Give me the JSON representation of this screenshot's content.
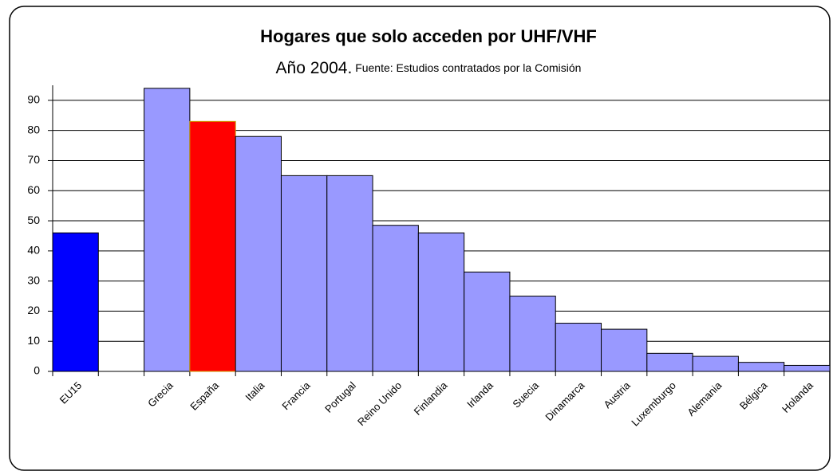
{
  "chart_data": {
    "type": "bar",
    "title": "Hogares que solo acceden por UHF/VHF",
    "subtitle": "Año 2004.",
    "source": "Fuente: Estudios contratados por la Comisión",
    "categories": [
      "EU15",
      null,
      "Grecia",
      "España",
      "Italia",
      "Francia",
      "Portugal",
      "Reino Unido",
      "Finlandia",
      "Irlanda",
      "Suecia",
      "Dinamarca",
      "Austria",
      "Luxemburgo",
      "Alemania",
      "Bélgica",
      "Holanda"
    ],
    "values": [
      46,
      null,
      94,
      83,
      78,
      65,
      65,
      48.5,
      46,
      33,
      25,
      16,
      14,
      6,
      5,
      3,
      2
    ],
    "colors": [
      "#0000ff",
      null,
      "#9999ff",
      "#ff0000",
      "#9999ff",
      "#9999ff",
      "#9999ff",
      "#9999ff",
      "#9999ff",
      "#9999ff",
      "#9999ff",
      "#9999ff",
      "#9999ff",
      "#9999ff",
      "#9999ff",
      "#9999ff",
      "#9999ff"
    ],
    "ylim": [
      0,
      95
    ],
    "yticks": [
      0,
      10,
      20,
      30,
      40,
      50,
      60,
      70,
      80,
      90
    ],
    "grid": true
  }
}
